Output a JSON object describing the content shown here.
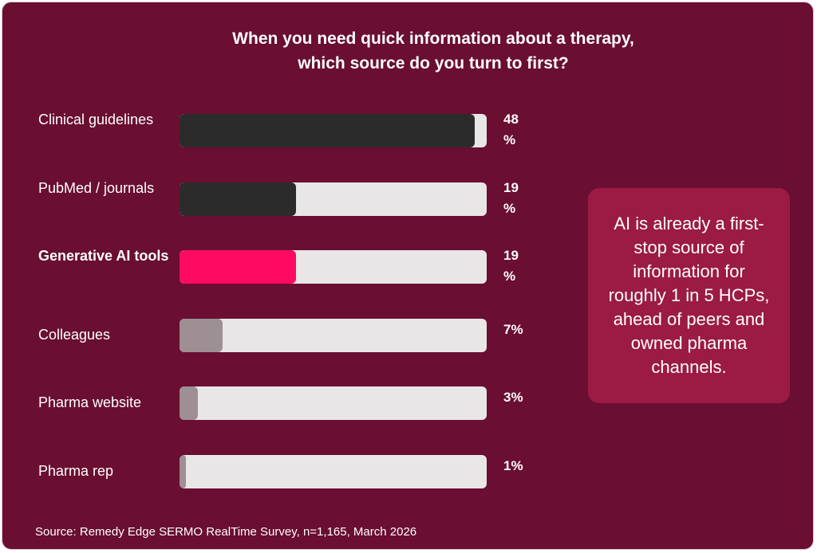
{
  "title_lines": [
    "When you need quick information about a therapy,",
    "which source do you turn to first?"
  ],
  "callout": "AI is already a first-stop source of information for roughly 1 in 5 HCPs, ahead of peers and owned pharma channels.",
  "source": "Source: Remedy Edge SERMO RealTime Survey, n=1,165, March 2026",
  "colors": {
    "background": "#6a0e32",
    "track": "#e9e6e7",
    "dark_bar": "#2b2b2b",
    "highlight_bar": "#ff0a63",
    "muted_bar": "#9e8f94",
    "callout": "#9b1b44"
  },
  "chart_data": {
    "type": "bar",
    "orientation": "horizontal",
    "xlim": [
      0,
      50
    ],
    "categories": [
      {
        "label": "Clinical guidelines",
        "value": 48,
        "value_label": "48 %",
        "color": "#2b2b2b",
        "bold": false
      },
      {
        "label": "PubMed / journals",
        "value": 19,
        "value_label": "19 %",
        "color": "#2b2b2b",
        "bold": false
      },
      {
        "label": "Generative AI tools",
        "value": 19,
        "value_label": "19 %",
        "color": "#ff0a63",
        "bold": true
      },
      {
        "label": "Colleagues",
        "value": 7,
        "value_label": "7%",
        "color": "#9e8f94",
        "bold": false
      },
      {
        "label": "Pharma website",
        "value": 3,
        "value_label": "3%",
        "color": "#9e8f94",
        "bold": false
      },
      {
        "label": "Pharma rep",
        "value": 1,
        "value_label": "1%",
        "color": "#9e8f94",
        "bold": false
      }
    ]
  }
}
